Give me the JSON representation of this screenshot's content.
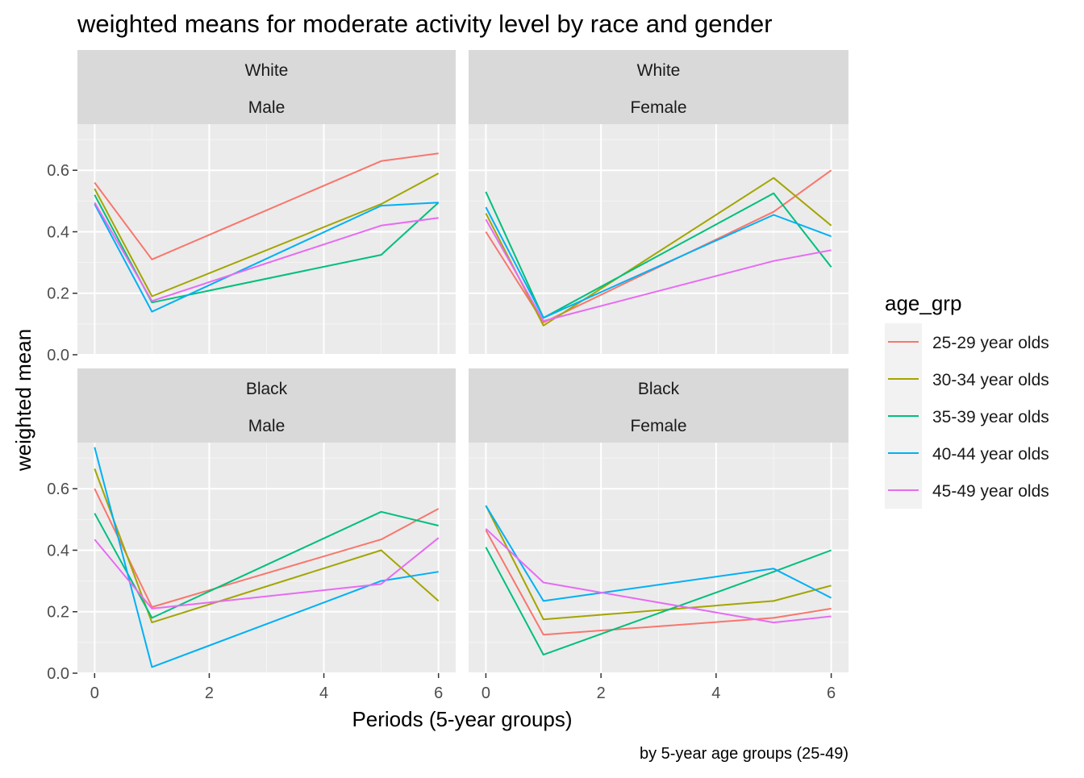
{
  "chart_data": {
    "type": "line",
    "title": "weighted means for moderate activity level by race and gender",
    "xlabel": "Periods (5-year groups)",
    "ylabel": "weighted mean",
    "caption": "by 5-year age groups (25-49)",
    "legend_title": "age_grp",
    "legend_placement": "right",
    "grid": true,
    "xlim": [
      -0.3,
      6.3
    ],
    "ylim": [
      0,
      0.75
    ],
    "x": [
      0,
      1,
      5,
      6
    ],
    "x_ticks": [
      0,
      2,
      4,
      6
    ],
    "x_tick_labels": [
      "0",
      "2",
      "4",
      "6"
    ],
    "y_ticks": [
      0.0,
      0.2,
      0.4,
      0.6
    ],
    "y_tick_labels": [
      "0.0",
      "0.2",
      "0.4",
      "0.6"
    ],
    "series_meta": [
      {
        "name": "25-29 year olds",
        "color": "#F8766D"
      },
      {
        "name": "30-34 year olds",
        "color": "#A3A500"
      },
      {
        "name": "35-39 year olds",
        "color": "#00BF7D"
      },
      {
        "name": "40-44 year olds",
        "color": "#00B0F6"
      },
      {
        "name": "45-49 year olds",
        "color": "#E76BF3"
      }
    ],
    "panels": [
      {
        "race": "White",
        "gender": "Male",
        "series": [
          {
            "name": "25-29 year olds",
            "values": [
              0.56,
              0.31,
              0.63,
              0.655
            ]
          },
          {
            "name": "30-34 year olds",
            "values": [
              0.54,
              0.19,
              0.49,
              0.59
            ]
          },
          {
            "name": "35-39 year olds",
            "values": [
              0.52,
              0.17,
              0.325,
              0.495
            ]
          },
          {
            "name": "40-44 year olds",
            "values": [
              0.49,
              0.14,
              0.485,
              0.495
            ]
          },
          {
            "name": "45-49 year olds",
            "values": [
              0.495,
              0.175,
              0.42,
              0.445
            ]
          }
        ]
      },
      {
        "race": "White",
        "gender": "Female",
        "series": [
          {
            "name": "25-29 year olds",
            "values": [
              0.4,
              0.105,
              0.465,
              0.6
            ]
          },
          {
            "name": "30-34 year olds",
            "values": [
              0.46,
              0.095,
              0.575,
              0.42
            ]
          },
          {
            "name": "35-39 year olds",
            "values": [
              0.53,
              0.12,
              0.525,
              0.285
            ]
          },
          {
            "name": "40-44 year olds",
            "values": [
              0.48,
              0.12,
              0.455,
              0.385
            ]
          },
          {
            "name": "45-49 year olds",
            "values": [
              0.44,
              0.11,
              0.305,
              0.34
            ]
          }
        ]
      },
      {
        "race": "Black",
        "gender": "Male",
        "series": [
          {
            "name": "25-29 year olds",
            "values": [
              0.6,
              0.215,
              0.435,
              0.535
            ]
          },
          {
            "name": "30-34 year olds",
            "values": [
              0.665,
              0.165,
              0.4,
              0.235
            ]
          },
          {
            "name": "35-39 year olds",
            "values": [
              0.52,
              0.18,
              0.525,
              0.48
            ]
          },
          {
            "name": "40-44 year olds",
            "values": [
              0.735,
              0.02,
              0.3,
              0.33
            ]
          },
          {
            "name": "45-49 year olds",
            "values": [
              0.435,
              0.21,
              0.29,
              0.44
            ]
          }
        ]
      },
      {
        "race": "Black",
        "gender": "Female",
        "series": [
          {
            "name": "25-29 year olds",
            "values": [
              0.465,
              0.125,
              0.18,
              0.21
            ]
          },
          {
            "name": "30-34 year olds",
            "values": [
              0.545,
              0.175,
              0.235,
              0.285
            ]
          },
          {
            "name": "35-39 year olds",
            "values": [
              0.41,
              0.06,
              0.33,
              0.4
            ]
          },
          {
            "name": "40-44 year olds",
            "values": [
              0.545,
              0.235,
              0.34,
              0.245
            ]
          },
          {
            "name": "45-49 year olds",
            "values": [
              0.47,
              0.295,
              0.165,
              0.185
            ]
          }
        ]
      }
    ]
  },
  "style": {
    "panel_bg": "#EBEBEB",
    "strip_bg": "#D9D9D9",
    "grid_major": "#FFFFFF",
    "grid_minor": "#F5F5F5",
    "text_dark": "#1A1A1A",
    "axis_text": "#4D4D4D"
  }
}
